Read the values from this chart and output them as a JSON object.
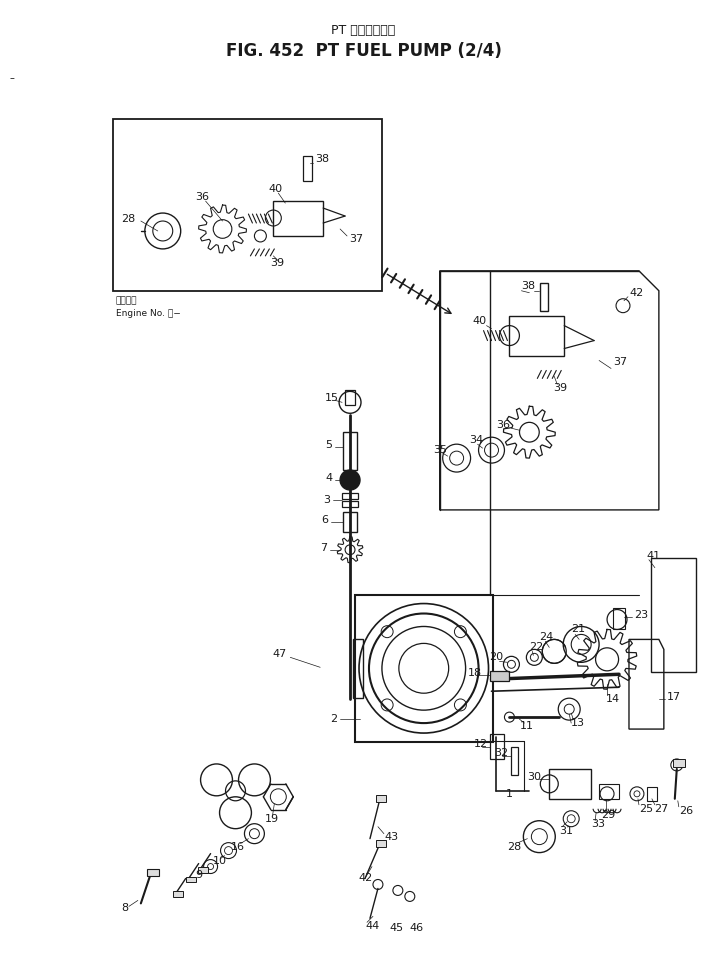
{
  "title_line1": "PT フェルポンプ",
  "title_line2": "FIG. 452  PT FUEL PUMP (2/4)",
  "background_color": "#ffffff",
  "line_color": "#1a1a1a",
  "fig_width": 7.27,
  "fig_height": 9.73,
  "dpi": 100,
  "note_line1": "適用底番",
  "note_line2": "Engine No. ・−"
}
